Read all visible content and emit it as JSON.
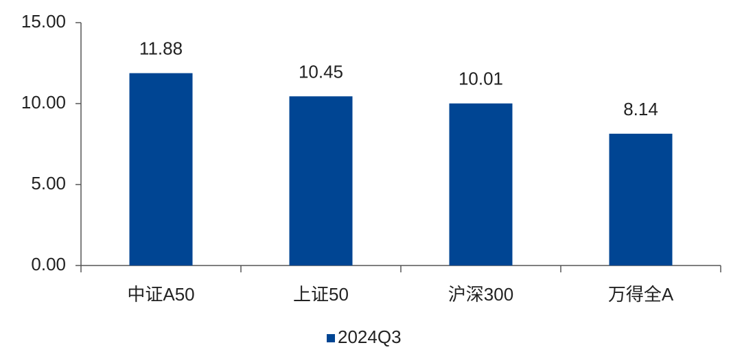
{
  "chart_data": {
    "type": "bar",
    "categories": [
      "中证A50",
      "上证50",
      "沪深300",
      "万得全A"
    ],
    "series": [
      {
        "name": "2024Q3",
        "color": "#004593",
        "values": [
          11.88,
          10.45,
          10.01,
          8.14
        ]
      }
    ],
    "ylim": [
      0,
      15
    ],
    "yticks": [
      {
        "value": 0,
        "label": "0.00"
      },
      {
        "value": 5,
        "label": "5.00"
      },
      {
        "value": 10,
        "label": "10.00"
      },
      {
        "value": 15,
        "label": "15.00"
      }
    ],
    "grid": false,
    "legend": "bottom"
  }
}
